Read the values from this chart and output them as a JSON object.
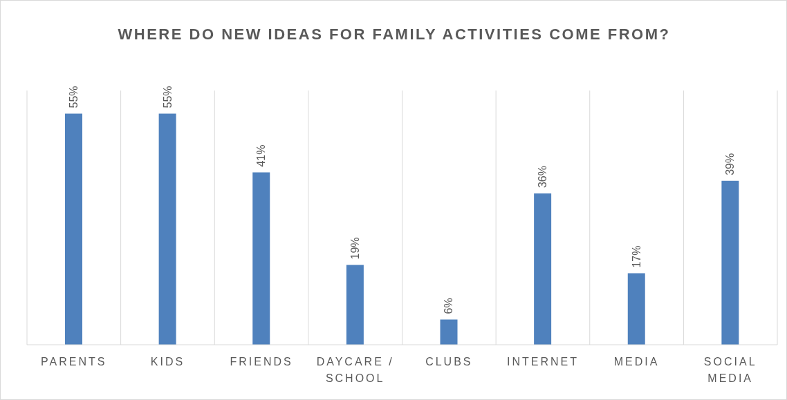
{
  "chart_data": {
    "type": "bar",
    "title": "WHERE DO NEW IDEAS FOR FAMILY ACTIVITIES COME FROM?",
    "categories": [
      "PARENTS",
      "KIDS",
      "FRIENDS",
      "DAYCARE / SCHOOL",
      "CLUBS",
      "INTERNET",
      "MEDIA",
      "SOCIAL MEDIA"
    ],
    "values": [
      55,
      55,
      41,
      19,
      6,
      36,
      17,
      39
    ],
    "value_labels": [
      "55%",
      "55%",
      "41%",
      "19%",
      "6%",
      "36%",
      "17%",
      "39%"
    ],
    "color": "#4f81bd",
    "grid": "x"
  }
}
